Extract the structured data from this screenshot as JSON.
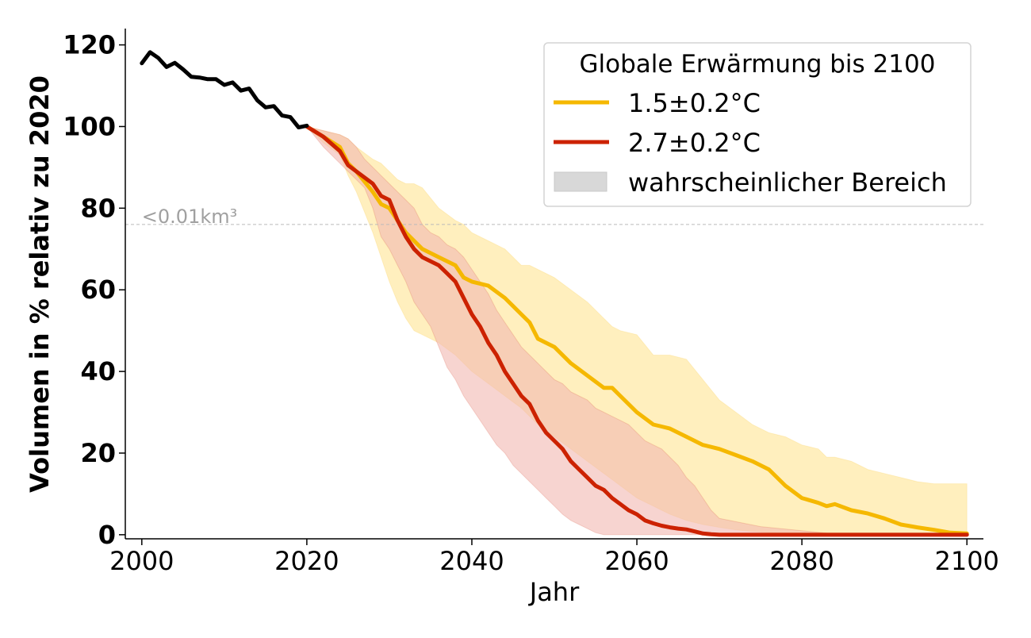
{
  "colors": {
    "observed": "#000000",
    "s15_line": "#f5b800",
    "s15_band": "#ffe9a8",
    "s27_line": "#cc2200",
    "s27_band": "#f2b8b0",
    "legend_band": "#d8d8d8",
    "threshold": "#bbbbbb",
    "threshold_text": "#a0a0a0"
  },
  "chart_data": {
    "type": "line",
    "xlabel": "Jahr",
    "ylabel": "Volumen in % relativ zu 2020",
    "xlim": [
      1998,
      2102
    ],
    "ylim": [
      -1,
      124
    ],
    "xticks": [
      2000,
      2020,
      2040,
      2060,
      2080,
      2100
    ],
    "yticks": [
      0,
      20,
      40,
      60,
      80,
      100,
      120
    ],
    "grid": false,
    "legend": {
      "position": "top-right",
      "title": "Globale Erwärmung bis 2100",
      "entries": [
        "1.5±0.2°C",
        "2.7±0.2°C",
        "wahrscheinlicher Bereich"
      ]
    },
    "threshold": {
      "y": 76,
      "label": "<0.01km³"
    },
    "observed": {
      "x": [
        2000,
        2001,
        2002,
        2003,
        2004,
        2005,
        2006,
        2007,
        2008,
        2009,
        2010,
        2011,
        2012,
        2013,
        2014,
        2015,
        2016,
        2017,
        2018,
        2019,
        2020
      ],
      "y": [
        115.5,
        118.2,
        116.8,
        114.6,
        115.6,
        114,
        112.2,
        112,
        111.6,
        111.6,
        110.2,
        110.8,
        108.8,
        109.3,
        106.4,
        104.7,
        105,
        102.7,
        102.3,
        99.8,
        100.2
      ]
    },
    "series": [
      {
        "name": "1.5±0.2°C",
        "x": [
          2020,
          2022,
          2024,
          2025,
          2026,
          2028,
          2029,
          2030,
          2031,
          2032,
          2033,
          2034,
          2036,
          2038,
          2039,
          2040,
          2042,
          2044,
          2046,
          2047,
          2048,
          2050,
          2052,
          2054,
          2056,
          2057,
          2058,
          2060,
          2062,
          2063,
          2064,
          2066,
          2068,
          2070,
          2072,
          2074,
          2076,
          2078,
          2080,
          2082,
          2083,
          2084,
          2086,
          2088,
          2090,
          2092,
          2094,
          2096,
          2098,
          2100
        ],
        "y": [
          100,
          97.5,
          95,
          91,
          89,
          84,
          81,
          80,
          77,
          74,
          72,
          70,
          68,
          66,
          63,
          62,
          61,
          58,
          54,
          52,
          48,
          46,
          42,
          39,
          36,
          36,
          34,
          30,
          27,
          26.5,
          26,
          24,
          22,
          21,
          19.5,
          18,
          16,
          12,
          9,
          7.8,
          7,
          7.5,
          6,
          5.2,
          4,
          2.5,
          1.8,
          1.2,
          0.5,
          0.3
        ],
        "low": [
          100,
          96,
          93,
          88,
          84,
          74,
          68,
          62,
          57,
          53,
          50,
          49,
          47,
          44,
          42,
          40,
          37,
          34,
          31,
          29,
          27,
          24,
          21,
          18,
          15,
          13.5,
          12,
          9,
          7,
          6,
          5,
          3.5,
          2.5,
          1.8,
          1.2,
          0.8,
          0.5,
          0.3,
          0,
          0,
          0,
          0,
          0,
          0,
          0,
          0,
          0,
          0,
          0,
          0
        ],
        "high": [
          100,
          99,
          98,
          97,
          95,
          92,
          91,
          89,
          87,
          86,
          86,
          85,
          80,
          77,
          76,
          74,
          72,
          70,
          66,
          66,
          65,
          63,
          60,
          57,
          53,
          51,
          50,
          49,
          44,
          44,
          44,
          43,
          38,
          33,
          30,
          27,
          25,
          24,
          22,
          21,
          19,
          19,
          18,
          16,
          15,
          14,
          13,
          12.5,
          12.5,
          12.5
        ]
      },
      {
        "name": "2.7±0.2°C",
        "x": [
          2020,
          2022,
          2024,
          2025,
          2026,
          2027,
          2028,
          2029,
          2030,
          2031,
          2032,
          2033,
          2034,
          2035,
          2036,
          2037,
          2038,
          2039,
          2040,
          2041,
          2042,
          2043,
          2044,
          2045,
          2046,
          2047,
          2048,
          2049,
          2050,
          2051,
          2052,
          2053,
          2054,
          2055,
          2056,
          2057,
          2058,
          2059,
          2060,
          2061,
          2062,
          2063,
          2064,
          2065,
          2066,
          2067,
          2068,
          2069,
          2070,
          2075,
          2080,
          2085,
          2090,
          2095,
          2100
        ],
        "y": [
          100,
          97.5,
          94,
          90.5,
          89,
          87.5,
          86,
          83,
          82,
          77,
          73,
          70,
          68,
          67,
          66,
          64,
          62,
          58,
          54,
          51,
          47,
          44,
          40,
          37,
          34,
          32,
          28,
          25,
          23,
          21,
          18,
          16,
          14,
          12,
          11,
          9,
          7.5,
          6,
          5,
          3.5,
          2.8,
          2.2,
          1.8,
          1.5,
          1.3,
          0.8,
          0.3,
          0.1,
          0,
          0,
          0,
          0,
          0,
          0,
          0
        ],
        "low": [
          100,
          95,
          91,
          89,
          87,
          85,
          80,
          73,
          70,
          66,
          62,
          57,
          54,
          51,
          46,
          41,
          38,
          34,
          31,
          28,
          25,
          22,
          20,
          17,
          15,
          13,
          11,
          9,
          7,
          5,
          3.5,
          2.5,
          1.5,
          0.5,
          0,
          0,
          0,
          0,
          0,
          0,
          0,
          0,
          0,
          0,
          0,
          0,
          0,
          0,
          0,
          0,
          0,
          0,
          0,
          0,
          0
        ],
        "high": [
          100,
          99,
          98,
          97,
          95,
          92,
          90,
          88,
          86,
          84,
          82,
          80,
          76,
          74,
          73,
          71,
          70,
          68,
          65,
          62,
          59,
          55,
          52,
          49,
          46,
          44,
          42,
          40,
          38,
          37,
          35,
          34,
          33,
          31,
          30,
          29,
          28,
          27,
          25,
          23,
          22,
          21,
          19,
          17,
          14,
          12,
          9,
          6,
          4,
          2,
          1,
          0,
          0,
          0,
          0
        ]
      }
    ]
  }
}
